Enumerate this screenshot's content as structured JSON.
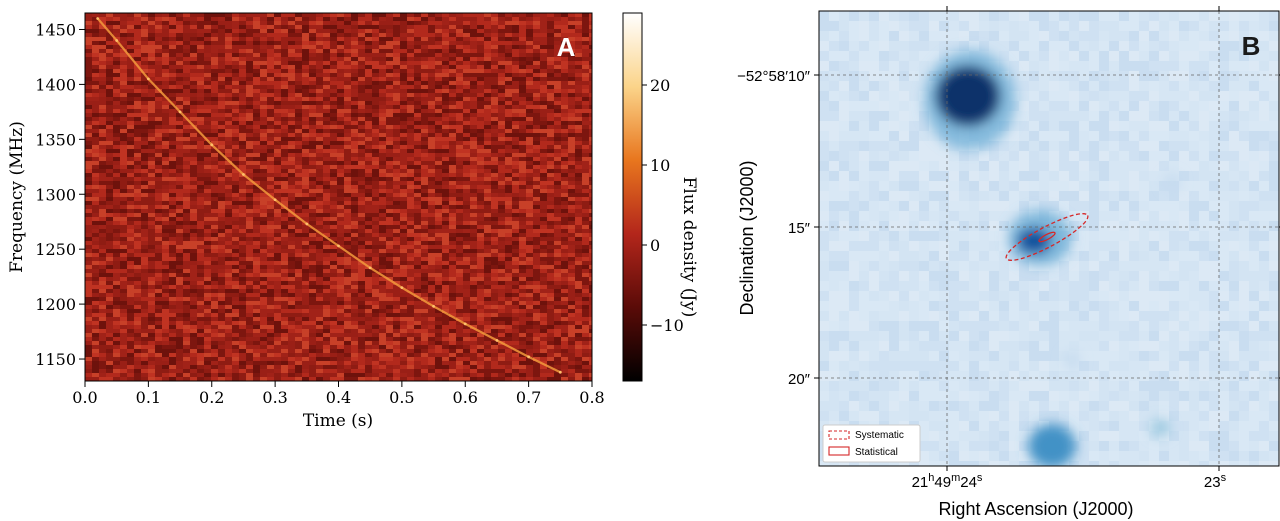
{
  "chart_data": [
    {
      "panel": "A",
      "type": "heatmap",
      "panel_label": "A",
      "xlabel": "Time (s)",
      "ylabel": "Frequency (MHz)",
      "xlim": [
        0.0,
        0.8
      ],
      "ylim": [
        1130,
        1465
      ],
      "xticks": [
        0.0,
        0.1,
        0.2,
        0.3,
        0.4,
        0.5,
        0.6,
        0.7,
        0.8
      ],
      "xtick_labels": [
        "0.0",
        "0.1",
        "0.2",
        "0.3",
        "0.4",
        "0.5",
        "0.6",
        "0.7",
        "0.8"
      ],
      "yticks": [
        1150,
        1200,
        1250,
        1300,
        1350,
        1400,
        1450
      ],
      "ytick_labels": [
        "1150",
        "1200",
        "1250",
        "1300",
        "1350",
        "1400",
        "1450"
      ],
      "burst_track": [
        {
          "t": 0.02,
          "f": 1460
        },
        {
          "t": 0.05,
          "f": 1440
        },
        {
          "t": 0.1,
          "f": 1405
        },
        {
          "t": 0.15,
          "f": 1375
        },
        {
          "t": 0.2,
          "f": 1345
        },
        {
          "t": 0.25,
          "f": 1318
        },
        {
          "t": 0.3,
          "f": 1295
        },
        {
          "t": 0.35,
          "f": 1273
        },
        {
          "t": 0.4,
          "f": 1253
        },
        {
          "t": 0.45,
          "f": 1233
        },
        {
          "t": 0.5,
          "f": 1215
        },
        {
          "t": 0.55,
          "f": 1198
        },
        {
          "t": 0.6,
          "f": 1182
        },
        {
          "t": 0.65,
          "f": 1167
        },
        {
          "t": 0.7,
          "f": 1152
        },
        {
          "t": 0.75,
          "f": 1138
        }
      ],
      "colorbar": {
        "label": "Flux density (Jy)",
        "range": [
          -17,
          29
        ],
        "ticks": [
          20,
          10,
          0,
          -10
        ],
        "tick_labels": [
          "20",
          "10",
          "0",
          "−10"
        ],
        "colors": [
          "#000000",
          "#5a0b08",
          "#b3261b",
          "#e8761e",
          "#fbd48a",
          "#ffffff"
        ]
      }
    },
    {
      "panel": "B",
      "type": "heatmap",
      "panel_label": "B",
      "xlabel": "Right Ascension (J2000)",
      "ylabel": "Declination (J2000)",
      "xtick_labels": [
        {
          "h": "21",
          "h_unit": "h",
          "m": "49",
          "m_unit": "m",
          "s": "24",
          "s_unit": "s"
        },
        {
          "s": "23",
          "s_unit": "s"
        }
      ],
      "ytick_labels": [
        "−52°58′10″",
        "15″",
        "20″"
      ],
      "grid": true,
      "legend": {
        "placement": "bottom-left",
        "entries": [
          {
            "label": "Systematic",
            "style": "dashed",
            "color": "#d62728"
          },
          {
            "label": "Statistical",
            "style": "solid",
            "color": "#d62728"
          }
        ]
      },
      "colormap": "Blues"
    }
  ]
}
